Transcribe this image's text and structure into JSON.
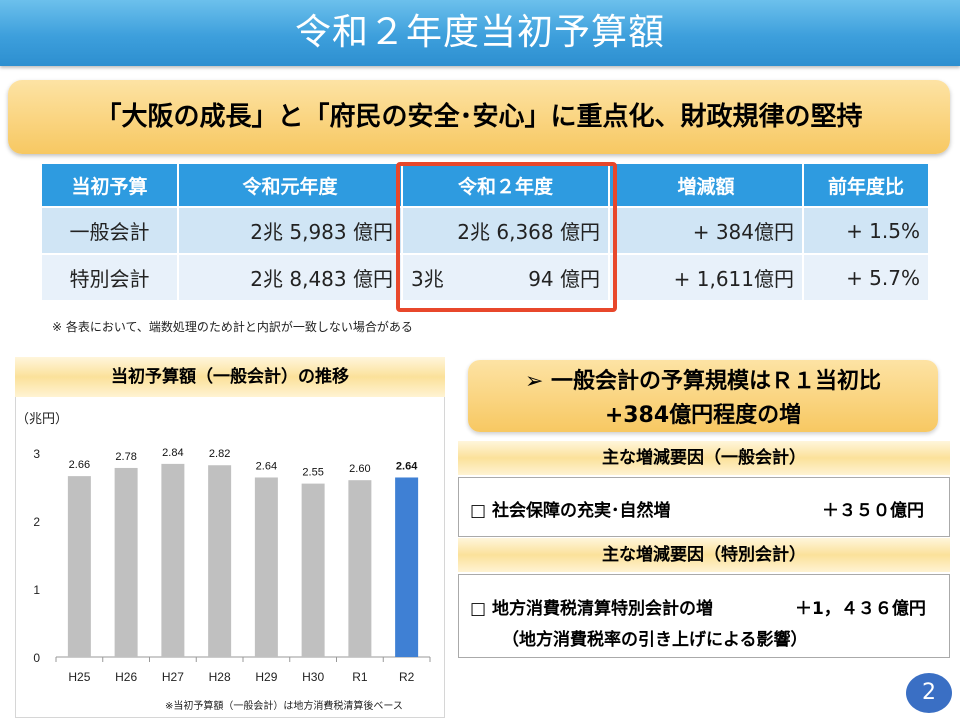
{
  "title": "令和２年度当初予算額",
  "headline": "「大阪の成長」と「府民の安全･安心」に重点化、財政規律の堅持",
  "table": {
    "headers": [
      "当初予算",
      "令和元年度",
      "令和２年度",
      "増減額",
      "前年度比"
    ],
    "rows": [
      {
        "label": "一般会計",
        "r1": "2兆 5,983 億円",
        "r2": "2兆 6,368 億円",
        "diff": "+ 384億円",
        "ratio": "+ 1.5%"
      },
      {
        "label": "特別会計",
        "r1": "2兆 8,483 億円",
        "r2_a": "3兆",
        "r2_b": "94 億円",
        "diff": "+ 1,611億円",
        "ratio": "+ 5.7%"
      }
    ],
    "note": "※ 各表において、端数処理のため計と内訳が一致しない場合がある"
  },
  "chart_data": {
    "type": "bar",
    "title": "当初予算額（一般会計）の推移",
    "ylabel": "（兆円）",
    "categories": [
      "H25",
      "H26",
      "H27",
      "H28",
      "H29",
      "H30",
      "R1",
      "R2"
    ],
    "values": [
      2.66,
      2.78,
      2.84,
      2.82,
      2.64,
      2.55,
      2.6,
      2.64
    ],
    "labels": [
      "2.66",
      "2.78",
      "2.84",
      "2.82",
      "2.64",
      "2.55",
      "2.60",
      "2.64"
    ],
    "yticks": [
      "0",
      "1",
      "2",
      "3"
    ],
    "ylim": [
      0,
      3
    ],
    "colors": {
      "default": "#c0c0c0",
      "highlight": "#3f80d4"
    },
    "highlight_index": 7,
    "note": "※当初予算額（一般会計）は地方消費税清算後ベース"
  },
  "key_point": {
    "line1": "一般会計の予算規模はＲ１当初比",
    "line2": "+384億円程度の増",
    "bullet": "➢"
  },
  "factors_general": {
    "title": "主な増減要因（一般会計）",
    "item": "社会保障の充実･自然増",
    "amount": "＋３５０億円"
  },
  "factors_special": {
    "title": "主な増減要因（特別会計）",
    "item": "地方消費税清算特別会計の増",
    "amount": "＋1，４３６億円",
    "sub": "（地方消費税率の引き上げによる影響）"
  },
  "checkbox": "□",
  "page_number": "2",
  "colors": {
    "header_blue": "#2e9be0",
    "highlight_red": "#e8472b",
    "banner_gold": "#f7c862"
  }
}
